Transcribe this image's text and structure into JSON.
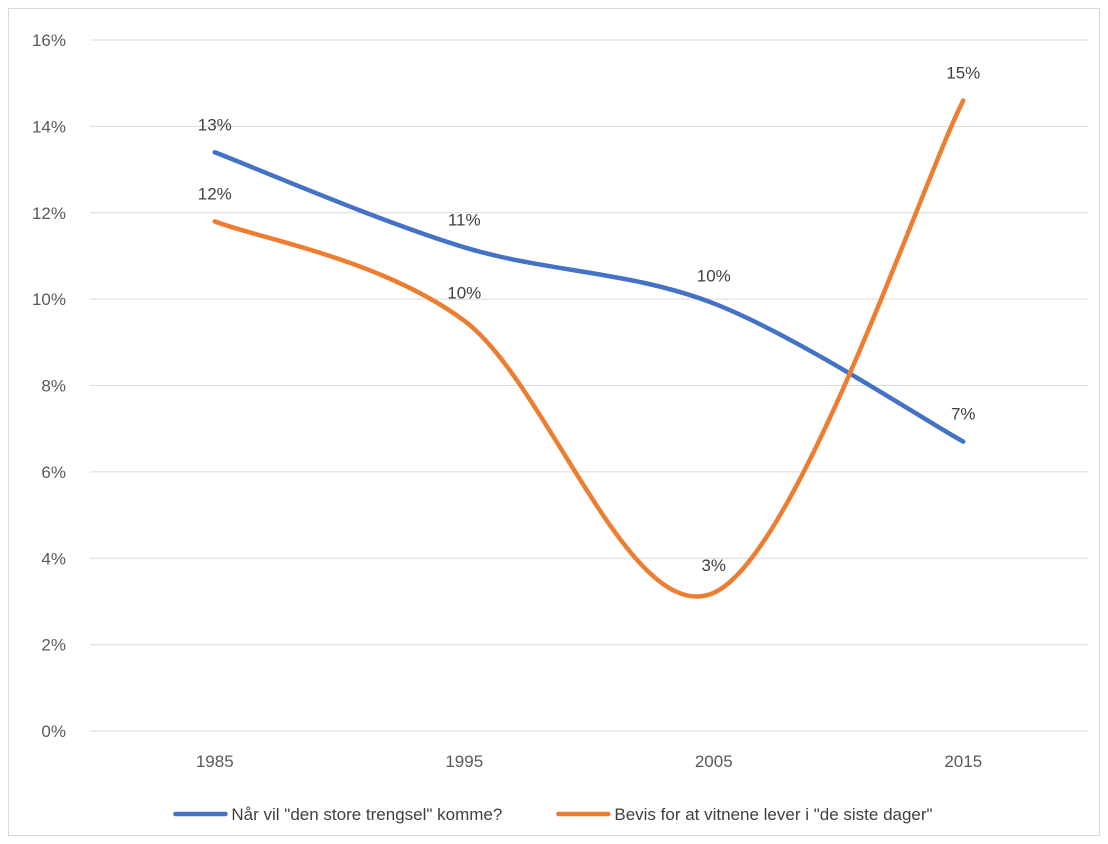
{
  "chart_data": {
    "type": "line",
    "title": "",
    "xlabel": "",
    "ylabel": "",
    "categories": [
      "1985",
      "1995",
      "2005",
      "2015"
    ],
    "y_ticks": [
      "0%",
      "2%",
      "4%",
      "6%",
      "8%",
      "10%",
      "12%",
      "14%",
      "16%"
    ],
    "ylim": [
      0,
      16
    ],
    "grid": true,
    "smooth": true,
    "legend_position": "bottom",
    "series": [
      {
        "name": "Når vil \"den store trengsel\" komme?",
        "color": "#4472C4",
        "values": [
          13.4,
          11.2,
          9.9,
          6.7
        ],
        "labels": [
          "13%",
          "11%",
          "10%",
          "7%"
        ]
      },
      {
        "name": "Bevis for at vitnene lever i \"de siste dager\"",
        "color": "#ED7D31",
        "values": [
          11.8,
          9.5,
          3.2,
          14.6
        ],
        "labels": [
          "12%",
          "10%",
          "3%",
          "15%"
        ]
      }
    ]
  }
}
